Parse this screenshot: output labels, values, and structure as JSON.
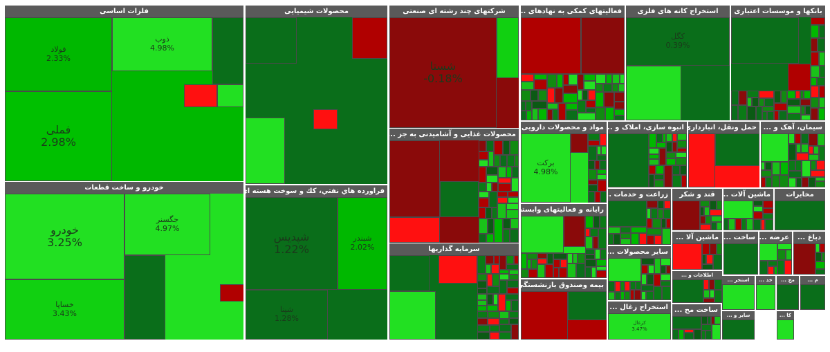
{
  "chart_data": {
    "type": "treemap",
    "colors": {
      "strong_pos": "#00b800",
      "bright_pos": "#22e022",
      "dark_pos": "#0a6e1a",
      "mid_pos": "#118a11",
      "neg": "#b00000",
      "bright_neg": "#ff1010",
      "dark_neg": "#8a0a0a"
    },
    "sectors": [
      {
        "name": "فلزات اساسی",
        "tiles": [
          {
            "symbol": "فولاد",
            "change": "2.33%",
            "color": "#00b800"
          },
          {
            "symbol": "ذوب",
            "change": "4.98%",
            "color": "#22e022"
          },
          {
            "symbol": "فملی",
            "change": "2.98%",
            "color": "#00c000"
          },
          {
            "symbol": "",
            "change": "",
            "color": "#0a6e1a"
          },
          {
            "symbol": "",
            "change": "",
            "color": "#22e022"
          },
          {
            "symbol": "",
            "change": "",
            "color": "#ff1010"
          }
        ]
      },
      {
        "name": "خودرو و ساخت قطعات",
        "tiles": [
          {
            "symbol": "خودرو",
            "change": "3.25%",
            "color": "#22e022"
          },
          {
            "symbol": "جگسنر",
            "change": "4.97%",
            "color": "#22e022"
          },
          {
            "symbol": "خساپا",
            "change": "3.43%",
            "color": "#11d011"
          },
          {
            "symbol": "",
            "change": "",
            "color": "#0a6e1a"
          },
          {
            "symbol": "",
            "change": "",
            "color": "#b00000"
          }
        ]
      },
      {
        "name": "محصولات شیمیایی",
        "tiles": [
          {
            "symbol": "",
            "change": "",
            "color": "#0a6e1a"
          },
          {
            "symbol": "",
            "change": "",
            "color": "#b00000"
          },
          {
            "symbol": "",
            "change": "",
            "color": "#22e022"
          },
          {
            "symbol": "",
            "change": "",
            "color": "#ff1010"
          }
        ]
      },
      {
        "name": "فراورده هاي نفتي، كك و سوخت هسته اي",
        "tiles": [
          {
            "symbol": "شپدیس",
            "change": "1.22%",
            "color": "#0a6e1a"
          },
          {
            "symbol": "شبندر",
            "change": "2.02%",
            "color": "#00b800"
          },
          {
            "symbol": "شپنا",
            "change": "1.28%",
            "color": "#0a6e1a"
          }
        ]
      },
      {
        "name": "شرکتهای چند رشته ای صنعتی",
        "tiles": [
          {
            "symbol": "شستا",
            "change": "-0.18%",
            "color": "#8a0a0a"
          },
          {
            "symbol": "",
            "change": "",
            "color": "#11d011"
          }
        ]
      },
      {
        "name": "محصولات غذایی و آشامیدنی به جز ...",
        "tiles": [
          {
            "symbol": "",
            "change": "",
            "color": "#8a0a0a"
          },
          {
            "symbol": "",
            "change": "",
            "color": "#ff1010"
          },
          {
            "symbol": "",
            "change": "",
            "color": "#0a6e1a"
          }
        ]
      },
      {
        "name": "سرمایه گذاریها",
        "tiles": [
          {
            "symbol": "",
            "change": "",
            "color": "#0a6e1a"
          },
          {
            "symbol": "",
            "change": "",
            "color": "#22e022"
          },
          {
            "symbol": "",
            "change": "",
            "color": "#ff1010"
          }
        ]
      },
      {
        "name": "فعالیتهای کمکی به نهادهای ...",
        "tiles": [
          {
            "symbol": "",
            "change": "",
            "color": "#b00000"
          },
          {
            "symbol": "",
            "change": "",
            "color": "#8a0a0a"
          }
        ]
      },
      {
        "name": "مواد و محصولات دارویی",
        "tiles": [
          {
            "symbol": "برکت",
            "change": "4.98%",
            "color": "#22e022"
          },
          {
            "symbol": "",
            "change": "",
            "color": "#8a0a0a"
          }
        ]
      },
      {
        "name": "رایانه و فعالیتهای وابسته ...",
        "tiles": [
          {
            "symbol": "",
            "change": "",
            "color": "#22e022"
          },
          {
            "symbol": "",
            "change": "",
            "color": "#8a0a0a"
          }
        ]
      },
      {
        "name": "بیمه وصندوق بازنشستگی ...",
        "tiles": [
          {
            "symbol": "",
            "change": "",
            "color": "#b00000"
          },
          {
            "symbol": "",
            "change": "",
            "color": "#0a6e1a"
          }
        ]
      },
      {
        "name": "استخراج کانه های فلزی",
        "tiles": [
          {
            "symbol": "کگل",
            "change": "0.39%",
            "color": "#0a6e1a"
          },
          {
            "symbol": "",
            "change": "",
            "color": "#22e022"
          }
        ]
      },
      {
        "name": "بانکها و موسسات اعتباری",
        "tiles": [
          {
            "symbol": "",
            "change": "",
            "color": "#0a6e1a"
          },
          {
            "symbol": "",
            "change": "",
            "color": "#b00000"
          }
        ]
      },
      {
        "name": "انبوه سازی، املاک و ...",
        "tiles": [
          {
            "symbol": "",
            "change": "",
            "color": "#0a6e1a"
          }
        ]
      },
      {
        "name": "حمل ونقل، انبارداری ...",
        "tiles": [
          {
            "symbol": "",
            "change": "",
            "color": "#ff1010"
          },
          {
            "symbol": "",
            "change": "",
            "color": "#0a6e1a"
          }
        ]
      },
      {
        "name": "سیمان، آهک و ...",
        "tiles": [
          {
            "symbol": "",
            "change": "",
            "color": "#22e022"
          }
        ]
      },
      {
        "name": "زراعت و خدمات ...",
        "tiles": [
          {
            "symbol": "",
            "change": "",
            "color": "#0a6e1a"
          }
        ]
      },
      {
        "name": "قند و شکر",
        "tiles": [
          {
            "symbol": "",
            "change": "",
            "color": "#8a0a0a"
          }
        ]
      },
      {
        "name": "ماشین آلات ...",
        "tiles": [
          {
            "symbol": "",
            "change": "",
            "color": "#22e022"
          }
        ]
      },
      {
        "name": "مخابرات",
        "tiles": [
          {
            "symbol": "",
            "change": "",
            "color": "#0a6e1a"
          }
        ]
      },
      {
        "name": "سایر محصولات ...",
        "tiles": [
          {
            "symbol": "",
            "change": "",
            "color": "#22e022"
          }
        ]
      },
      {
        "name": "ماشین آلا ...",
        "tiles": [
          {
            "symbol": "",
            "change": "",
            "color": "#ff1010"
          }
        ]
      },
      {
        "name": "ساخت ...",
        "tiles": [
          {
            "symbol": "",
            "change": "",
            "color": "#0a6e1a"
          }
        ]
      },
      {
        "name": "عرضه ...",
        "tiles": [
          {
            "symbol": "",
            "change": "",
            "color": "#22e022"
          }
        ]
      },
      {
        "name": "دباغ ...",
        "tiles": [
          {
            "symbol": "",
            "change": "",
            "color": "#8a0a0a"
          }
        ]
      },
      {
        "name": "اطلاعات و ...",
        "tiles": [
          {
            "symbol": "",
            "change": "",
            "color": "#0a6e1a"
          }
        ]
      },
      {
        "name": "استخراج زغال ...",
        "tiles": [
          {
            "symbol": "کزغال",
            "change": "3.47%",
            "color": "#22e022"
          }
        ]
      },
      {
        "name": "ساخت مح ...",
        "tiles": [
          {
            "symbol": "",
            "change": "",
            "color": "#0a6e1a"
          }
        ]
      },
      {
        "name": "استخر ...",
        "tiles": [
          {
            "symbol": "",
            "change": "",
            "color": "#22e022"
          }
        ]
      },
      {
        "name": "خد ...",
        "tiles": [
          {
            "symbol": "",
            "change": "",
            "color": "#22e022"
          }
        ]
      },
      {
        "name": "مح ...",
        "tiles": [
          {
            "symbol": "",
            "change": "",
            "color": "#0a6e1a"
          }
        ]
      },
      {
        "name": "م ...",
        "tiles": [
          {
            "symbol": "",
            "change": "",
            "color": "#0a6e1a"
          }
        ]
      },
      {
        "name": "سایر و ...",
        "tiles": [
          {
            "symbol": "",
            "change": "",
            "color": "#0a6e1a"
          }
        ]
      },
      {
        "name": "کا ...",
        "tiles": [
          {
            "symbol": "",
            "change": "",
            "color": "#22e022"
          }
        ]
      }
    ]
  }
}
